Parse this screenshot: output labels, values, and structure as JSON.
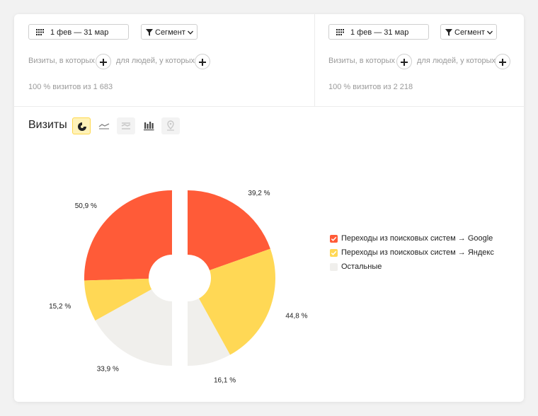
{
  "segments": [
    {
      "date_range": "1 фев — 31 мар",
      "segment_label": "Сегмент",
      "visits_where": "Визиты, в которых",
      "people_where": "для людей, у которых",
      "summary": "100 % визитов из 1 683"
    },
    {
      "date_range": "1 фев — 31 мар",
      "segment_label": "Сегмент",
      "visits_where": "Визиты, в которых",
      "people_where": "для людей, у которых",
      "summary": "100 % визитов из 2 218"
    }
  ],
  "report": {
    "title": "Визиты",
    "view_buttons": [
      {
        "name": "pie-view-icon",
        "active": true,
        "enabled": true
      },
      {
        "name": "line-view-icon",
        "active": false,
        "enabled": true
      },
      {
        "name": "area-view-icon",
        "active": false,
        "enabled": false
      },
      {
        "name": "bar-view-icon",
        "active": false,
        "enabled": true
      },
      {
        "name": "map-view-icon",
        "active": false,
        "enabled": false
      }
    ]
  },
  "colors": {
    "google": "#ff5b38",
    "yandex": "#ffd855",
    "other": "#f0efec",
    "accent": "#ffd84d"
  },
  "chart_data": {
    "type": "pie",
    "variant": "mirrored-donut",
    "categories": [
      "Переходы из поисковых систем → Google",
      "Переходы из поисковых систем → Яндекс",
      "Остальные"
    ],
    "series": [
      {
        "values": [
          50.9,
          15.2,
          33.9
        ],
        "labels": [
          "50,9 %",
          "15,2 %",
          "33,9 %"
        ]
      },
      {
        "values": [
          39.2,
          44.8,
          16.1
        ],
        "labels": [
          "39,2 %",
          "44,8 %",
          "16,1 %"
        ]
      }
    ],
    "legend_position": "right",
    "legend_checked": [
      true,
      true,
      false
    ]
  }
}
